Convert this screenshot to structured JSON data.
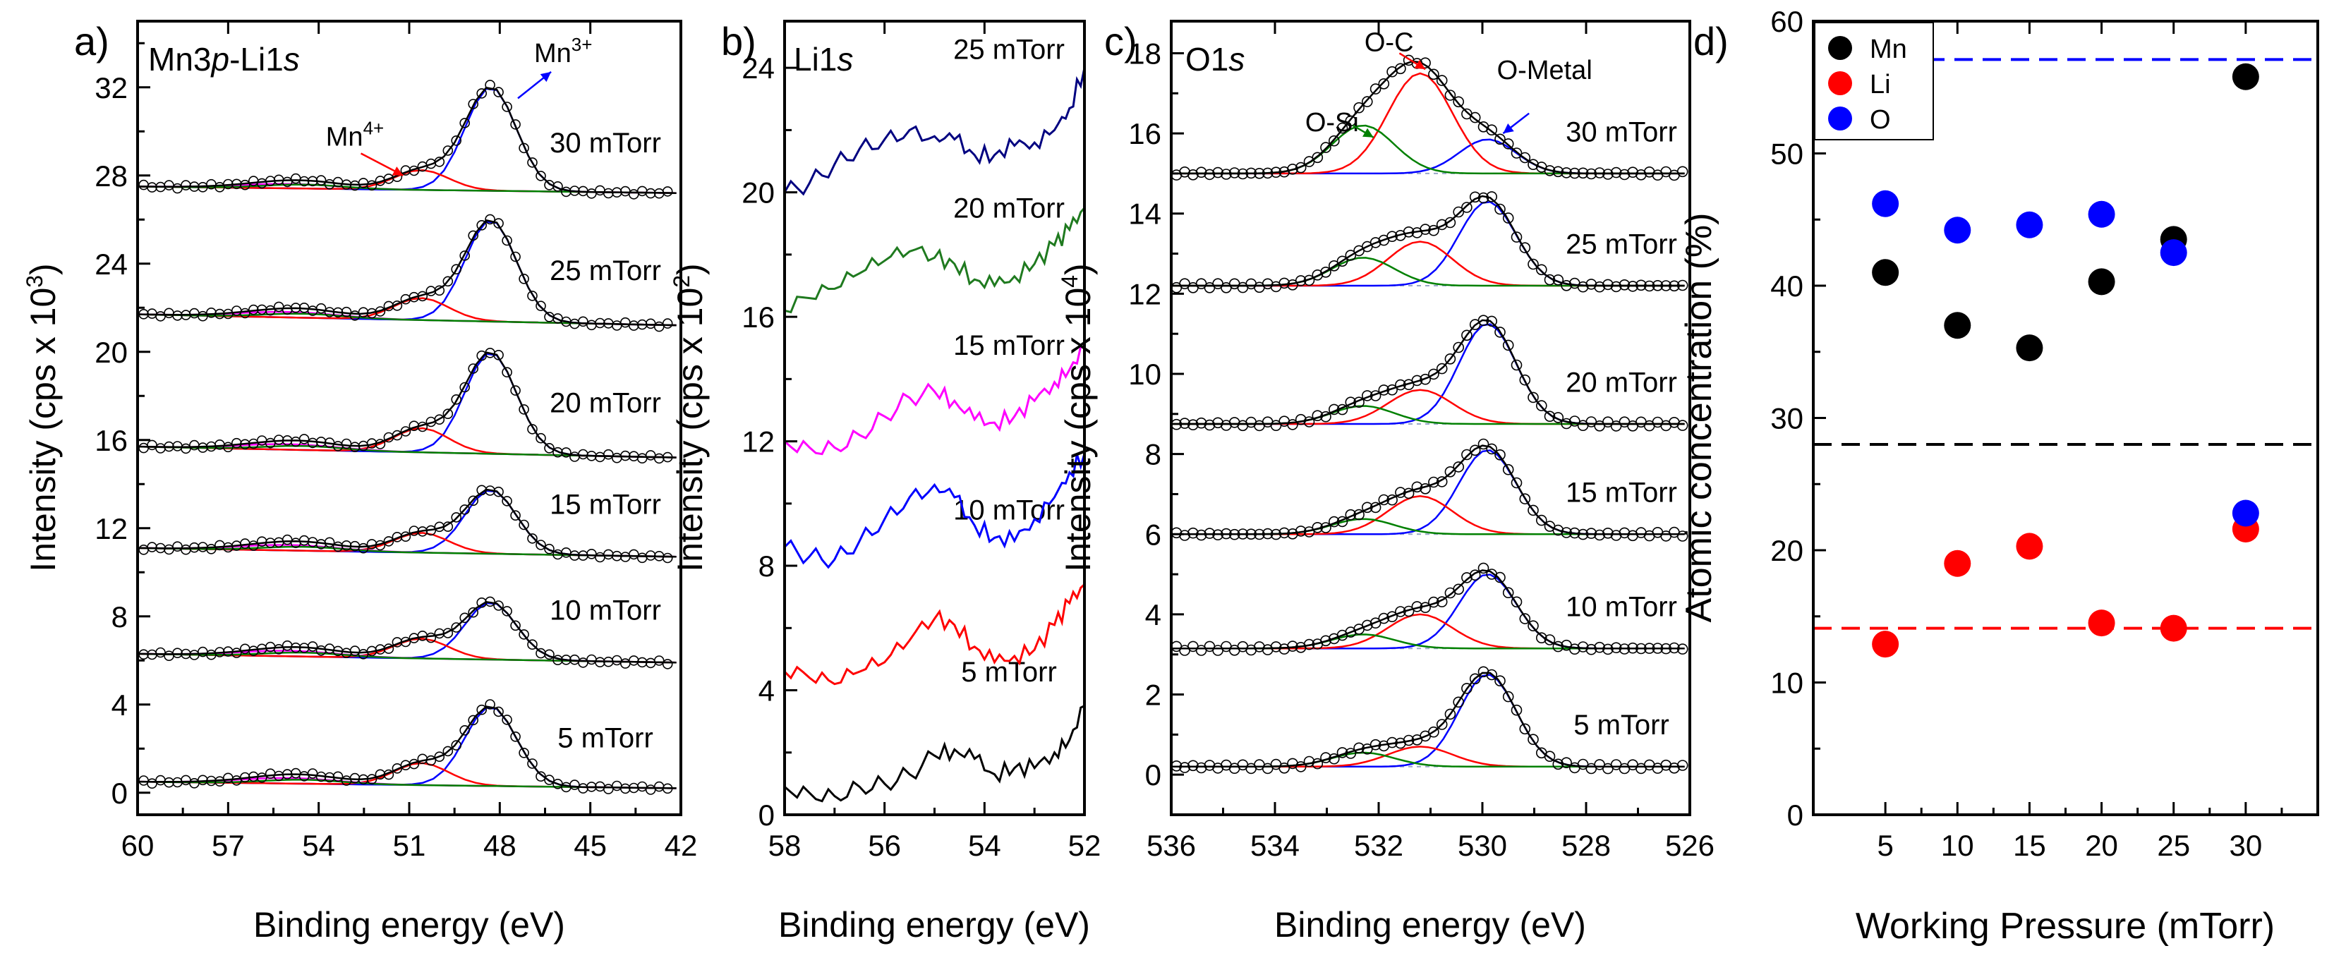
{
  "figure": {
    "caption": "",
    "colors": {
      "black": "#000000",
      "blue": "#0000ff",
      "red": "#ff0000",
      "green": "#008000",
      "magenta": "#ff00ff",
      "navy": "#000080",
      "darkgreen": "#1f7a1f",
      "grey": "#808080",
      "mn": "#000000",
      "li": "#ff0000",
      "o": "#0000ff"
    }
  },
  "chart_data": [
    {
      "id": "a",
      "type": "line",
      "panel_label": "a)",
      "title_parts": [
        "Mn3",
        "p",
        "-Li1",
        "s"
      ],
      "xlabel": "Binding energy (eV)",
      "ylabel_parts": [
        "Intensity (cps x 10",
        "3",
        ")"
      ],
      "xlim": [
        60,
        42
      ],
      "ylim": [
        -1,
        35
      ],
      "xticks": [
        60,
        57,
        54,
        51,
        48,
        45,
        42
      ],
      "xtick_labels": [
        "60",
        "57",
        "54",
        "51",
        "48",
        "45",
        "42"
      ],
      "yticks": [
        0,
        4,
        8,
        12,
        16,
        20,
        24,
        28,
        32
      ],
      "ytick_labels": [
        "0",
        "4",
        "8",
        "12",
        "16",
        "20",
        "24",
        "28",
        "32"
      ],
      "series": [
        {
          "name": "5 mTorr",
          "offset": 0.5,
          "end": 0.2,
          "mn3": 3.6,
          "mn4": 1.0,
          "li": 0.25
        },
        {
          "name": "10 mTorr",
          "offset": 6.3,
          "end": 5.9,
          "mn3": 2.6,
          "mn4": 0.9,
          "li": 0.25
        },
        {
          "name": "15 mTorr",
          "offset": 11.1,
          "end": 10.7,
          "mn3": 2.9,
          "mn4": 0.9,
          "li": 0.25
        },
        {
          "name": "20 mTorr",
          "offset": 15.7,
          "end": 15.2,
          "mn3": 4.6,
          "mn4": 1.1,
          "li": 0.25
        },
        {
          "name": "25 mTorr",
          "offset": 21.7,
          "end": 21.2,
          "mn3": 4.6,
          "mn4": 1.0,
          "li": 0.25
        },
        {
          "name": "30 mTorr",
          "offset": 27.5,
          "end": 27.2,
          "mn3": 4.7,
          "mn4": 0.9,
          "li": 0.2
        }
      ],
      "peak_positions_eV": {
        "mn3": 48.3,
        "mn4": 50.6,
        "li": 55
      },
      "annotations": [
        {
          "text": "Mn",
          "sup": "4+",
          "x_eV": 52.8,
          "y": 29.8
        },
        {
          "text": "Mn",
          "sup": "3+",
          "x_eV": 45.9,
          "y": 33.6
        }
      ]
    },
    {
      "id": "b",
      "type": "line",
      "panel_label": "b)",
      "title_parts": [
        "Li1",
        "s"
      ],
      "xlabel": "Binding energy (eV)",
      "ylabel_parts": [
        "Intensity (cps x 10",
        "2",
        ")"
      ],
      "xlim": [
        58,
        52
      ],
      "ylim": [
        0,
        25.5
      ],
      "xticks": [
        58,
        56,
        54,
        52
      ],
      "xtick_labels": [
        "58",
        "56",
        "54",
        "52"
      ],
      "yticks": [
        0,
        4,
        8,
        12,
        16,
        20,
        24
      ],
      "ytick_labels": [
        "0",
        "4",
        "8",
        "12",
        "16",
        "20",
        "24"
      ],
      "series": [
        {
          "name": "5 mTorr",
          "color": "#000000",
          "label_y": 4.6,
          "x": [
            58,
            57.5,
            57,
            56.5,
            56,
            55.5,
            55,
            54.6,
            54.2,
            53.8,
            53.4,
            53,
            52.6,
            52.3,
            52
          ],
          "y": [
            0.9,
            0.7,
            0.6,
            0.9,
            1.0,
            1.3,
            1.9,
            2.1,
            1.8,
            1.3,
            1.5,
            1.5,
            2.0,
            2.4,
            3.5
          ]
        },
        {
          "name": "10 mTorr",
          "color": "#ff0000",
          "label_y": 9.8,
          "x": [
            58,
            57.5,
            57,
            56.5,
            56,
            55.5,
            55,
            54.6,
            54.2,
            53.8,
            53.4,
            53,
            52.6,
            52.3,
            52
          ],
          "y": [
            4.6,
            4.4,
            4.2,
            4.6,
            4.9,
            5.6,
            6.3,
            6.1,
            5.4,
            4.9,
            5.1,
            5.3,
            6.1,
            6.8,
            7.4
          ]
        },
        {
          "name": "15 mTorr",
          "color": "#0000ff",
          "label_y": 15.1,
          "x": [
            58,
            57.5,
            57,
            56.5,
            56,
            55.5,
            55,
            54.6,
            54.2,
            53.8,
            53.4,
            53,
            52.6,
            52.3,
            52
          ],
          "y": [
            8.6,
            8.3,
            8.2,
            8.8,
            9.5,
            10.2,
            10.6,
            10.2,
            9.3,
            8.9,
            8.8,
            9.5,
            10.2,
            11.0,
            11.6
          ]
        },
        {
          "name": "20 mTorr",
          "color": "#ff00ff",
          "label_y": 19.5,
          "x": [
            58,
            57.5,
            57,
            56.5,
            56,
            55.5,
            55,
            54.6,
            54.2,
            53.8,
            53.4,
            53,
            52.6,
            52.3,
            52
          ],
          "y": [
            12.0,
            11.8,
            11.8,
            12.2,
            12.8,
            13.4,
            13.6,
            13.3,
            12.7,
            12.6,
            12.8,
            13.3,
            13.9,
            14.3,
            15.0
          ]
        },
        {
          "name": "25 mTorr",
          "color": "#1f7a1f",
          "label_y": 24.6,
          "x": [
            58,
            57.5,
            57,
            56.5,
            56,
            55.5,
            55,
            54.6,
            54.2,
            53.8,
            53.4,
            53,
            52.6,
            52.3,
            52
          ],
          "y": [
            16.2,
            16.6,
            16.9,
            17.4,
            17.8,
            18.1,
            17.9,
            17.7,
            17.2,
            17.0,
            17.3,
            17.7,
            18.3,
            18.8,
            19.5
          ]
        },
        {
          "name": "30 mTorr",
          "color": "#000080",
          "label_y": 29.4,
          "x": [
            58,
            57.5,
            57,
            56.5,
            56,
            55.5,
            55,
            54.6,
            54.2,
            53.8,
            53.4,
            53,
            52.6,
            52.3,
            52
          ],
          "y": [
            20.0,
            20.3,
            20.9,
            21.4,
            21.7,
            22.0,
            21.8,
            21.7,
            21.2,
            21.2,
            21.5,
            21.6,
            22.0,
            22.7,
            24.0
          ]
        }
      ]
    },
    {
      "id": "c",
      "type": "line",
      "panel_label": "c)",
      "title_parts": [
        "O1",
        "s"
      ],
      "xlabel": "Binding energy (eV)",
      "ylabel_parts": [
        "Intensity (cps x 10",
        "4",
        ")"
      ],
      "xlim": [
        536,
        526
      ],
      "ylim": [
        -1,
        18.8
      ],
      "xticks": [
        536,
        534,
        532,
        530,
        528,
        526
      ],
      "xtick_labels": [
        "536",
        "534",
        "532",
        "530",
        "528",
        "526"
      ],
      "yticks": [
        0,
        2,
        4,
        6,
        8,
        10,
        12,
        14,
        16,
        18
      ],
      "ytick_labels": [
        "0",
        "2",
        "4",
        "6",
        "8",
        "10",
        "12",
        "14",
        "16",
        "18"
      ],
      "series": [
        {
          "name": "5 mTorr",
          "offset": 0.2,
          "metal": 2.3,
          "oc": 0.5,
          "osi": 0.35
        },
        {
          "name": "10 mTorr",
          "offset": 3.15,
          "metal": 1.85,
          "oc": 0.85,
          "osi": 0.35
        },
        {
          "name": "15 mTorr",
          "offset": 6.0,
          "metal": 2.1,
          "oc": 0.95,
          "osi": 0.38
        },
        {
          "name": "20 mTorr",
          "offset": 8.75,
          "metal": 2.5,
          "oc": 0.85,
          "osi": 0.45
        },
        {
          "name": "25 mTorr",
          "offset": 12.2,
          "metal": 2.1,
          "oc": 1.1,
          "osi": 0.7
        },
        {
          "name": "30 mTorr",
          "offset": 15.0,
          "metal": 0.85,
          "oc": 2.5,
          "osi": 1.2
        }
      ],
      "peak_positions_eV": {
        "metal": 529.9,
        "oc": 531.2,
        "osi": 532.3
      },
      "annotations": [
        {
          "text": "O-Si",
          "x_eV": 532.9,
          "y": 16.3
        },
        {
          "text": "O-C",
          "x_eV": 531.8,
          "y": 18.3
        },
        {
          "text": "O-Metal",
          "x_eV": 528.8,
          "y": 17.6
        }
      ]
    },
    {
      "id": "d",
      "type": "scatter",
      "panel_label": "d)",
      "xlabel": "Working Pressure (mTorr)",
      "ylabel": "Atomic concentration (%)",
      "xlim": [
        0,
        35
      ],
      "ylim": [
        0,
        60
      ],
      "xticks": [
        5,
        10,
        15,
        20,
        25,
        30
      ],
      "xtick_labels": [
        "5",
        "10",
        "15",
        "20",
        "25",
        "30"
      ],
      "yticks": [
        0,
        10,
        20,
        30,
        40,
        50,
        60
      ],
      "ytick_labels": [
        "0",
        "10",
        "20",
        "30",
        "40",
        "50",
        "60"
      ],
      "categories": [
        5,
        10,
        15,
        20,
        25,
        30
      ],
      "series": [
        {
          "name": "Mn",
          "color": "#000000",
          "values": [
            41.0,
            37.0,
            35.3,
            40.3,
            43.5,
            55.8
          ],
          "reference": 28.0
        },
        {
          "name": "Li",
          "color": "#ff0000",
          "values": [
            12.9,
            19.0,
            20.3,
            14.5,
            14.1,
            21.6
          ],
          "reference": 14.1
        },
        {
          "name": "O",
          "color": "#0000ff",
          "values": [
            46.2,
            44.2,
            44.6,
            45.4,
            42.5,
            22.8
          ],
          "reference": 57.1
        }
      ],
      "legend": {
        "position": "top-left"
      }
    }
  ]
}
